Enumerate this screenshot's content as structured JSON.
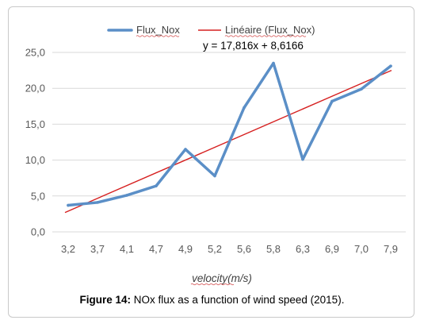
{
  "chart_data": {
    "type": "line",
    "categories": [
      "3,2",
      "3,7",
      "4,1",
      "4,7",
      "4,9",
      "5,2",
      "5,6",
      "5,8",
      "6,3",
      "6,9",
      "7,0",
      "7,9"
    ],
    "series": [
      {
        "name": "Flux_Nox",
        "color": "#5b8fc7",
        "values": [
          3.7,
          4.1,
          5.1,
          6.4,
          11.5,
          7.8,
          17.3,
          23.5,
          10.1,
          18.2,
          19.9,
          23.1
        ]
      }
    ],
    "trendline": {
      "name": "Linéaire (Flux_Nox)",
      "color": "#d62020",
      "equation": "y = 17,816x + 8,6166",
      "start": 2.7,
      "end": 22.5
    },
    "y_ticks": [
      "0,0",
      "5,0",
      "10,0",
      "15,0",
      "20,0",
      "25,0"
    ],
    "y_tick_values": [
      0,
      5,
      10,
      15,
      20,
      25
    ],
    "ylim": [
      0,
      25
    ],
    "xlabel": "velocity(m/s)",
    "ylabel": "",
    "grid": true,
    "legend_position": "top"
  },
  "caption": {
    "label": "Figure 14:",
    "text": " NOx flux as a function of wind speed (2015)."
  }
}
